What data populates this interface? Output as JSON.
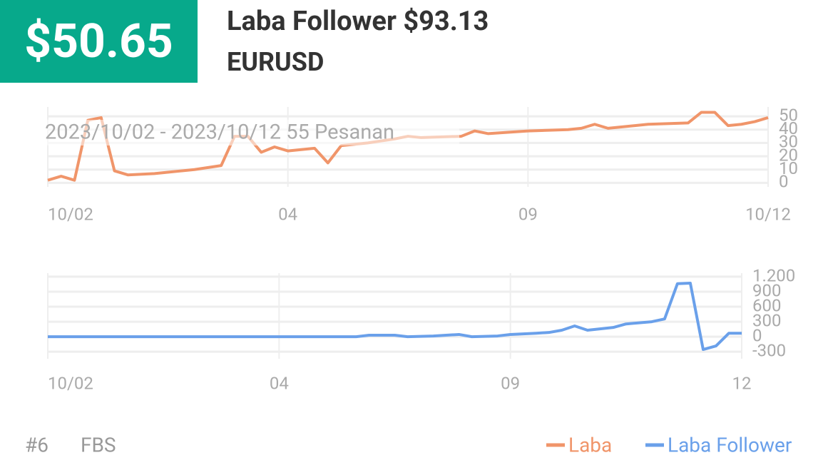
{
  "header": {
    "badge": "$50.65",
    "title": "Laba Follower $93.13",
    "symbol": "EURUSD"
  },
  "chart_data": [
    {
      "type": "line",
      "annotation": "2023/10/02 - 2023/10/12  55 Pesanan",
      "x": [
        0,
        1,
        2,
        3,
        4,
        5,
        6,
        8,
        11,
        13,
        14,
        15,
        16,
        17,
        18,
        20,
        21,
        22,
        24,
        26,
        27,
        28,
        31,
        32,
        33,
        36,
        39,
        40,
        41,
        42,
        45,
        48,
        49,
        50,
        51,
        52,
        53,
        54
      ],
      "series": [
        {
          "name": "Laba",
          "color": "#f0956a",
          "values": [
            2,
            5,
            2,
            47,
            49,
            9,
            6,
            7,
            10,
            13,
            35,
            35,
            23,
            27,
            24,
            26,
            15,
            28,
            30,
            33,
            35,
            34,
            35,
            39,
            37,
            39,
            40,
            41,
            44,
            41,
            44,
            45,
            53,
            53,
            43,
            44,
            46,
            49
          ]
        }
      ],
      "xlim": [
        0,
        54
      ],
      "xticks": [
        {
          "value": 0,
          "label": "10/02"
        },
        {
          "value": 18,
          "label": "04"
        },
        {
          "value": 36,
          "label": "09"
        },
        {
          "value": 54,
          "label": "10/12"
        }
      ],
      "ylim": [
        -3,
        57
      ],
      "yticks": [
        0,
        10,
        20,
        30,
        40,
        50
      ],
      "grid": true
    },
    {
      "type": "line",
      "x": [
        0,
        24,
        25,
        27,
        28,
        30,
        31,
        32,
        33,
        35,
        36,
        38,
        39,
        40,
        41,
        42,
        44,
        45,
        47,
        48,
        49,
        50,
        51,
        52,
        53,
        54
      ],
      "series": [
        {
          "name": "Laba Follower",
          "color": "#6aa0ea",
          "values": [
            0,
            0,
            30,
            30,
            0,
            15,
            30,
            45,
            0,
            15,
            45,
            70,
            85,
            130,
            215,
            130,
            185,
            255,
            300,
            355,
            1060,
            1070,
            -255,
            -185,
            70,
            70
          ]
        }
      ],
      "xlim": [
        0,
        54
      ],
      "xticks": [
        {
          "value": 0,
          "label": "10/02"
        },
        {
          "value": 18,
          "label": "04"
        },
        {
          "value": 36,
          "label": "09"
        },
        {
          "value": 54,
          "label": "12"
        }
      ],
      "ylim": [
        -440,
        1270
      ],
      "yticks": [
        {
          "value": 1200,
          "label": "1.200"
        },
        900,
        600,
        300,
        0,
        -300
      ],
      "grid": true
    }
  ],
  "footer": {
    "rank": "#6",
    "broker": "FBS"
  }
}
